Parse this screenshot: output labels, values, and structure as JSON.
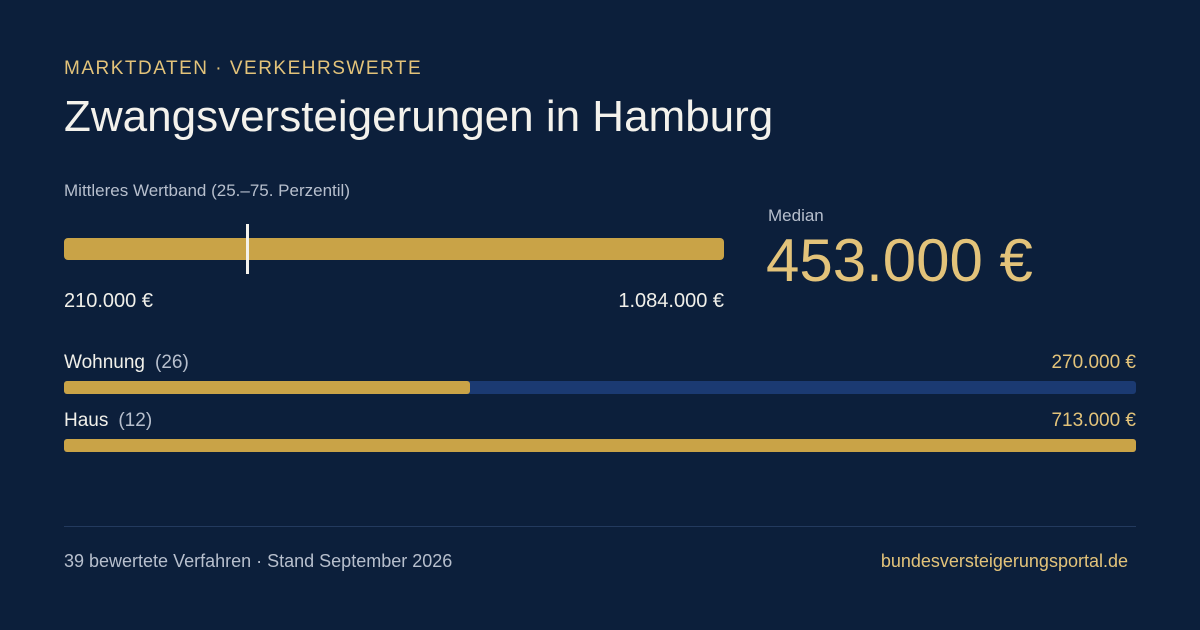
{
  "header": {
    "kicker": "MARKTDATEN · VERKEHRSWERTE",
    "title": "Zwangsversteigerungen in Hamburg"
  },
  "range": {
    "label": "Mittleres Wertband (25.–75. Perzentil)",
    "low": {
      "value": 210000,
      "label": "210.000 €"
    },
    "high": {
      "value": 1084000,
      "label": "1.084.000 €"
    },
    "median": {
      "name": "Median",
      "value": 453000,
      "label": "453.000 €"
    }
  },
  "types": [
    {
      "name": "Wohnung",
      "count": 26,
      "count_label": "(26)",
      "value": 270000,
      "value_label": "270.000 €"
    },
    {
      "name": "Haus",
      "count": 12,
      "count_label": "(12)",
      "value": 713000,
      "value_label": "713.000 €"
    }
  ],
  "footer": {
    "note": "39 bewertete Verfahren · Stand September 2026",
    "source": "bundesversteigerungsportal.de"
  }
}
